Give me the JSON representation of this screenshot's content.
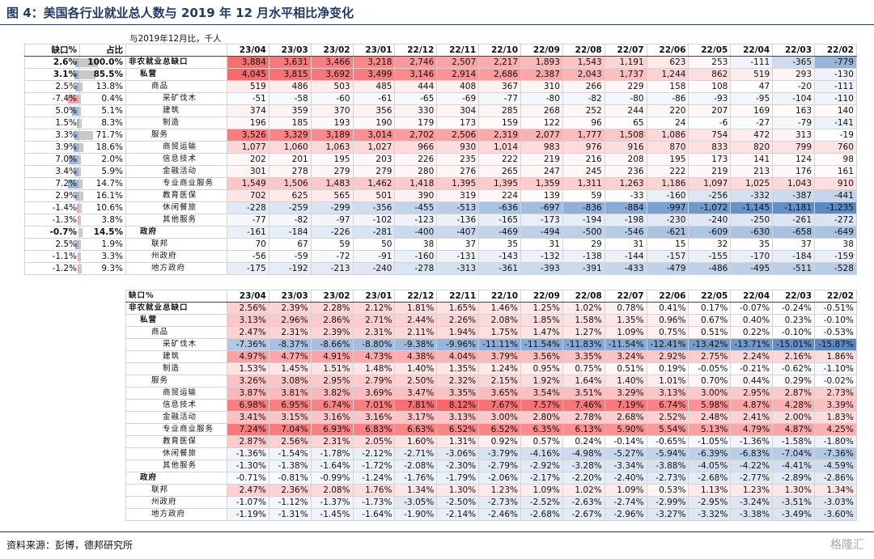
{
  "title": "图 4：美国各行业就业总人数与 2019 年 12 月水平相比净变化",
  "table1": {
    "note": "与2019年12月比，千人",
    "gap_header": "缺口%",
    "share_header": "占比",
    "months": [
      "23/04",
      "23/03",
      "23/02",
      "23/01",
      "22/12",
      "22/11",
      "22/10",
      "22/09",
      "22/08",
      "22/07",
      "22/06",
      "22/05",
      "22/04",
      "22/03",
      "22/02"
    ],
    "rows": [
      {
        "gap": "2.6%",
        "share": "100.0%",
        "name": "非农就业总缺口",
        "values": [
          "3,884",
          "3,631",
          "3,466",
          "3,218",
          "2,746",
          "2,507",
          "2,217",
          "1,893",
          "1,543",
          "1,191",
          "623",
          "253",
          "-111",
          "-365",
          "-779"
        ]
      },
      {
        "gap": "3.1%",
        "share": "85.5%",
        "name": "私营",
        "values": [
          "4,045",
          "3,815",
          "3,692",
          "3,499",
          "3,146",
          "2,914",
          "2,686",
          "2,387",
          "2,043",
          "1,737",
          "1,244",
          "862",
          "519",
          "293",
          "-130"
        ]
      },
      {
        "gap": "2.5%",
        "share": "13.8%",
        "name": "商品",
        "values": [
          "519",
          "486",
          "503",
          "485",
          "444",
          "408",
          "367",
          "310",
          "266",
          "229",
          "158",
          "108",
          "47",
          "-20",
          "-111"
        ]
      },
      {
        "gap": "-7.4%",
        "share": "0.4%",
        "name": "采矿伐木",
        "values": [
          "-51",
          "-58",
          "-60",
          "-61",
          "-65",
          "-69",
          "-77",
          "-80",
          "-82",
          "-80",
          "-86",
          "-93",
          "-95",
          "-104",
          "-110"
        ]
      },
      {
        "gap": "5.0%",
        "share": "5.1%",
        "name": "建筑",
        "values": [
          "374",
          "359",
          "370",
          "356",
          "330",
          "304",
          "285",
          "268",
          "252",
          "244",
          "220",
          "207",
          "169",
          "163",
          "140"
        ]
      },
      {
        "gap": "1.5%",
        "share": "8.3%",
        "name": "制造",
        "values": [
          "196",
          "185",
          "193",
          "190",
          "179",
          "173",
          "159",
          "122",
          "96",
          "65",
          "24",
          "-6",
          "-27",
          "-79",
          "-141"
        ]
      },
      {
        "gap": "3.3%",
        "share": "71.7%",
        "name": "服务",
        "values": [
          "3,526",
          "3,329",
          "3,189",
          "3,014",
          "2,702",
          "2,506",
          "2,319",
          "2,077",
          "1,777",
          "1,508",
          "1,086",
          "754",
          "472",
          "313",
          "-19"
        ]
      },
      {
        "gap": "3.9%",
        "share": "18.6%",
        "name": "商贸运输",
        "values": [
          "1,077",
          "1,060",
          "1,063",
          "1,027",
          "966",
          "930",
          "1,014",
          "983",
          "976",
          "916",
          "870",
          "833",
          "820",
          "799",
          "760"
        ]
      },
      {
        "gap": "7.0%",
        "share": "2.0%",
        "name": "信息技术",
        "values": [
          "202",
          "201",
          "195",
          "203",
          "226",
          "235",
          "222",
          "219",
          "216",
          "208",
          "195",
          "173",
          "141",
          "124",
          "98"
        ]
      },
      {
        "gap": "3.4%",
        "share": "5.9%",
        "name": "金融活动",
        "values": [
          "301",
          "278",
          "279",
          "279",
          "280",
          "276",
          "265",
          "247",
          "245",
          "236",
          "222",
          "219",
          "213",
          "176",
          "161"
        ]
      },
      {
        "gap": "7.2%",
        "share": "14.7%",
        "name": "专业商业服务",
        "values": [
          "1,549",
          "1,506",
          "1,483",
          "1,462",
          "1,418",
          "1,395",
          "1,395",
          "1,359",
          "1,311",
          "1,263",
          "1,186",
          "1,097",
          "1,025",
          "1,043",
          "910"
        ]
      },
      {
        "gap": "2.9%",
        "share": "16.1%",
        "name": "教育医保",
        "values": [
          "702",
          "625",
          "565",
          "501",
          "390",
          "319",
          "224",
          "139",
          "59",
          "-33",
          "-160",
          "-256",
          "-332",
          "-387",
          "-441"
        ]
      },
      {
        "gap": "-1.4%",
        "share": "10.6%",
        "name": "休闲餐旅",
        "values": [
          "-228",
          "-259",
          "-299",
          "-356",
          "-455",
          "-513",
          "-636",
          "-697",
          "-836",
          "-884",
          "-997",
          "-1,072",
          "-1,145",
          "-1,181",
          "-1,235"
        ]
      },
      {
        "gap": "-1.3%",
        "share": "3.8%",
        "name": "其他服务",
        "values": [
          "-77",
          "-82",
          "-97",
          "-102",
          "-123",
          "-136",
          "-165",
          "-173",
          "-194",
          "-198",
          "-230",
          "-240",
          "-250",
          "-261",
          "-272"
        ]
      },
      {
        "gap": "-0.7%",
        "share": "14.5%",
        "name": "政府",
        "values": [
          "-161",
          "-184",
          "-226",
          "-281",
          "-400",
          "-407",
          "-469",
          "-494",
          "-500",
          "-546",
          "-621",
          "-609",
          "-630",
          "-658",
          "-649"
        ]
      },
      {
        "gap": "2.5%",
        "share": "1.9%",
        "name": "联邦",
        "values": [
          "70",
          "67",
          "59",
          "50",
          "38",
          "37",
          "35",
          "31",
          "29",
          "31",
          "15",
          "32",
          "35",
          "37",
          "38"
        ]
      },
      {
        "gap": "-1.1%",
        "share": "3.3%",
        "name": "州政府",
        "values": [
          "-56",
          "-59",
          "-72",
          "-91",
          "-160",
          "-131",
          "-143",
          "-132",
          "-138",
          "-144",
          "-157",
          "-155",
          "-170",
          "-184",
          "-159"
        ]
      },
      {
        "gap": "-1.2%",
        "share": "9.3%",
        "name": "地方政府",
        "values": [
          "-175",
          "-192",
          "-213",
          "-240",
          "-278",
          "-313",
          "-361",
          "-393",
          "-391",
          "-433",
          "-479",
          "-486",
          "-495",
          "-511",
          "-528"
        ]
      }
    ]
  },
  "table2": {
    "header": "缺口%",
    "months": [
      "23/04",
      "23/03",
      "23/02",
      "23/01",
      "22/12",
      "22/11",
      "22/10",
      "22/09",
      "22/08",
      "22/07",
      "22/06",
      "22/05",
      "22/04",
      "22/03",
      "22/02"
    ],
    "rows": [
      {
        "name": "非农就业总缺口",
        "values": [
          "2.56%",
          "2.39%",
          "2.28%",
          "2.12%",
          "1.81%",
          "1.65%",
          "1.46%",
          "1.25%",
          "1.02%",
          "0.78%",
          "0.41%",
          "0.17%",
          "-0.07%",
          "-0.24%",
          "-0.51%"
        ]
      },
      {
        "name": "私营",
        "values": [
          "3.13%",
          "2.96%",
          "2.86%",
          "2.71%",
          "2.44%",
          "2.26%",
          "2.08%",
          "1.85%",
          "1.58%",
          "1.35%",
          "0.96%",
          "0.67%",
          "0.40%",
          "0.23%",
          "-0.10%"
        ]
      },
      {
        "name": "商品",
        "values": [
          "2.47%",
          "2.31%",
          "2.39%",
          "2.31%",
          "2.11%",
          "1.94%",
          "1.75%",
          "1.47%",
          "1.27%",
          "1.09%",
          "0.75%",
          "0.51%",
          "0.22%",
          "-0.10%",
          "-0.53%"
        ]
      },
      {
        "name": "采矿伐木",
        "values": [
          "-7.36%",
          "-8.37%",
          "-8.66%",
          "-8.80%",
          "-9.38%",
          "-9.96%",
          "-11.11%",
          "-11.54%",
          "-11.83%",
          "-11.54%",
          "-12.41%",
          "-13.42%",
          "-13.71%",
          "-15.01%",
          "-15.87%"
        ]
      },
      {
        "name": "建筑",
        "values": [
          "4.97%",
          "4.77%",
          "4.91%",
          "4.73%",
          "4.38%",
          "4.04%",
          "3.79%",
          "3.56%",
          "3.35%",
          "3.24%",
          "2.92%",
          "2.75%",
          "2.24%",
          "2.16%",
          "1.86%"
        ]
      },
      {
        "name": "制造",
        "values": [
          "1.53%",
          "1.45%",
          "1.51%",
          "1.48%",
          "1.40%",
          "1.35%",
          "1.24%",
          "0.95%",
          "0.75%",
          "0.51%",
          "0.19%",
          "-0.05%",
          "-0.21%",
          "-0.62%",
          "-1.10%"
        ]
      },
      {
        "name": "服务",
        "values": [
          "3.26%",
          "3.08%",
          "2.95%",
          "2.79%",
          "2.50%",
          "2.32%",
          "2.15%",
          "1.92%",
          "1.64%",
          "1.40%",
          "1.01%",
          "0.70%",
          "0.44%",
          "0.29%",
          "-0.02%"
        ]
      },
      {
        "name": "商贸运输",
        "values": [
          "3.87%",
          "3.81%",
          "3.82%",
          "3.69%",
          "3.47%",
          "3.35%",
          "3.65%",
          "3.54%",
          "3.51%",
          "3.29%",
          "3.13%",
          "3.00%",
          "2.95%",
          "2.87%",
          "2.73%"
        ]
      },
      {
        "name": "信息技术",
        "values": [
          "6.98%",
          "6.95%",
          "6.74%",
          "7.01%",
          "7.81%",
          "8.12%",
          "7.67%",
          "7.57%",
          "7.46%",
          "7.19%",
          "6.74%",
          "5.98%",
          "4.87%",
          "4.28%",
          "3.39%"
        ]
      },
      {
        "name": "金融活动",
        "values": [
          "3.41%",
          "3.15%",
          "3.16%",
          "3.16%",
          "3.17%",
          "3.13%",
          "3.00%",
          "2.80%",
          "2.78%",
          "2.68%",
          "2.52%",
          "2.48%",
          "2.41%",
          "2.00%",
          "1.83%"
        ]
      },
      {
        "name": "专业商业服务",
        "values": [
          "7.24%",
          "7.04%",
          "6.93%",
          "6.83%",
          "6.63%",
          "6.52%",
          "6.52%",
          "6.35%",
          "6.13%",
          "5.90%",
          "5.54%",
          "5.13%",
          "4.79%",
          "4.87%",
          "4.25%"
        ]
      },
      {
        "name": "教育医保",
        "values": [
          "2.87%",
          "2.56%",
          "2.31%",
          "2.05%",
          "1.60%",
          "1.31%",
          "0.92%",
          "0.57%",
          "0.24%",
          "-0.14%",
          "-0.65%",
          "-1.05%",
          "-1.36%",
          "-1.58%",
          "-1.80%"
        ]
      },
      {
        "name": "休闲餐旅",
        "values": [
          "-1.36%",
          "-1.54%",
          "-1.78%",
          "-2.12%",
          "-2.71%",
          "-3.06%",
          "-3.79%",
          "-4.16%",
          "-4.98%",
          "-5.27%",
          "-5.94%",
          "-6.39%",
          "-6.83%",
          "-7.04%",
          "-7.36%"
        ]
      },
      {
        "name": "其他服务",
        "values": [
          "-1.30%",
          "-1.38%",
          "-1.64%",
          "-1.72%",
          "-2.08%",
          "-2.30%",
          "-2.79%",
          "-2.92%",
          "-3.28%",
          "-3.34%",
          "-3.88%",
          "-4.05%",
          "-4.22%",
          "-4.41%",
          "-4.59%"
        ]
      },
      {
        "name": "政府",
        "values": [
          "-0.71%",
          "-0.81%",
          "-0.99%",
          "-1.24%",
          "-1.76%",
          "-1.79%",
          "-2.06%",
          "-2.17%",
          "-2.20%",
          "-2.40%",
          "-2.73%",
          "-2.68%",
          "-2.77%",
          "-2.89%",
          "-2.86%"
        ]
      },
      {
        "name": "联邦",
        "values": [
          "2.47%",
          "2.36%",
          "2.08%",
          "1.76%",
          "1.34%",
          "1.30%",
          "1.23%",
          "1.09%",
          "1.02%",
          "1.09%",
          "0.53%",
          "1.13%",
          "1.23%",
          "1.30%",
          "1.34%"
        ]
      },
      {
        "name": "州政府",
        "values": [
          "-1.07%",
          "-1.12%",
          "-1.37%",
          "-1.73%",
          "-3.05%",
          "-2.50%",
          "-2.73%",
          "-2.52%",
          "-2.63%",
          "-2.74%",
          "-2.99%",
          "-2.95%",
          "-3.24%",
          "-3.51%",
          "-3.03%"
        ]
      },
      {
        "name": "地方政府",
        "values": [
          "-1.19%",
          "-1.31%",
          "-1.45%",
          "-1.64%",
          "-1.90%",
          "-2.14%",
          "-2.46%",
          "-2.68%",
          "-2.67%",
          "-2.96%",
          "-3.27%",
          "-3.32%",
          "-3.38%",
          "-3.49%",
          "-3.60%"
        ]
      }
    ]
  },
  "source": "资料来源：彭博，德邦研究所",
  "watermark": "格隆汇"
}
